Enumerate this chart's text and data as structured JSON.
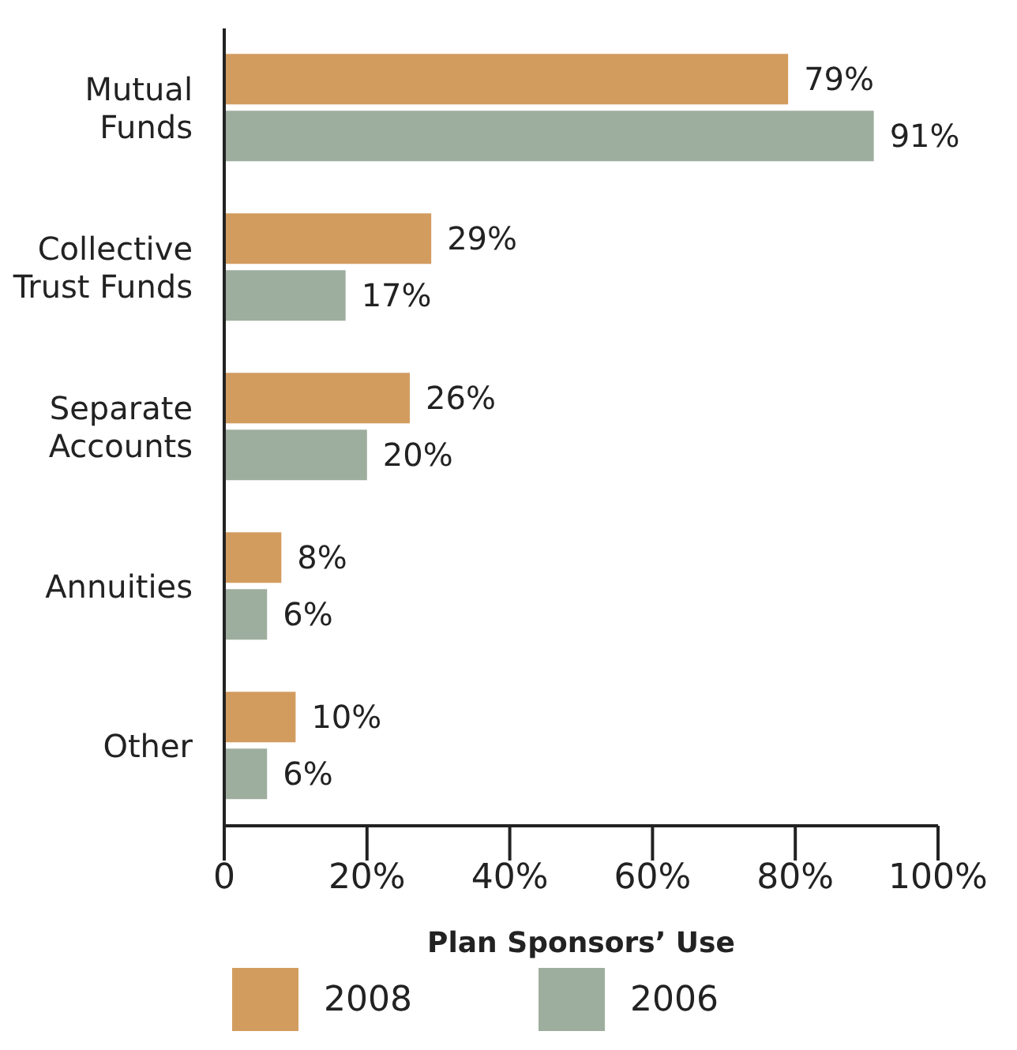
{
  "chart_data": {
    "type": "bar",
    "orientation": "horizontal",
    "xlabel": "Plan Sponsors’ Use",
    "categories": [
      "Mutual Funds",
      "Collective Trust Funds",
      "Separate Accounts",
      "Annuities",
      "Other"
    ],
    "series": [
      {
        "name": "2008",
        "color": "#d39c5f",
        "values": [
          79,
          29,
          26,
          8,
          10
        ],
        "value_labels": [
          "79%",
          "29%",
          "26%",
          "8%",
          "10%"
        ]
      },
      {
        "name": "2006",
        "color": "#9eae9e",
        "values": [
          91,
          17,
          20,
          6,
          6
        ],
        "value_labels": [
          "91%",
          "17%",
          "20%",
          "6%",
          "6%"
        ]
      }
    ],
    "xlim": [
      0,
      100
    ],
    "xticks": [
      {
        "value": 0,
        "label": "0"
      },
      {
        "value": 20,
        "label": "20%"
      },
      {
        "value": 40,
        "label": "40%"
      },
      {
        "value": 60,
        "label": "60%"
      },
      {
        "value": 80,
        "label": "80%"
      },
      {
        "value": 100,
        "label": "100%"
      }
    ],
    "grid": false,
    "legend": "bottom"
  }
}
